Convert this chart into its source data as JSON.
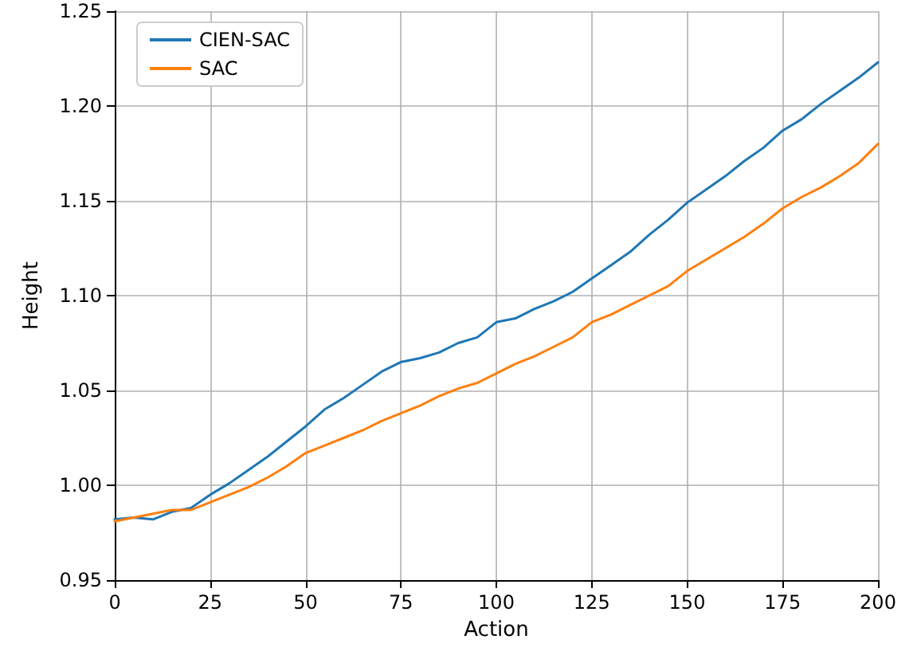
{
  "chart_data": {
    "type": "line",
    "xlabel": "Action",
    "ylabel": "Height",
    "x": [
      0,
      5,
      10,
      15,
      20,
      25,
      30,
      35,
      40,
      45,
      50,
      55,
      60,
      65,
      70,
      75,
      80,
      85,
      90,
      95,
      100,
      105,
      110,
      115,
      120,
      125,
      130,
      135,
      140,
      145,
      150,
      155,
      160,
      165,
      170,
      175,
      180,
      185,
      190,
      195,
      200
    ],
    "series": [
      {
        "name": "CIEN-SAC",
        "color": "#1f77b4",
        "values": [
          0.982,
          0.983,
          0.982,
          0.986,
          0.988,
          0.995,
          1.001,
          1.008,
          1.015,
          1.023,
          1.031,
          1.04,
          1.046,
          1.053,
          1.06,
          1.065,
          1.067,
          1.07,
          1.075,
          1.078,
          1.086,
          1.088,
          1.093,
          1.097,
          1.102,
          1.109,
          1.116,
          1.123,
          1.132,
          1.14,
          1.149,
          1.156,
          1.163,
          1.171,
          1.178,
          1.187,
          1.193,
          1.201,
          1.208,
          1.215,
          1.223
        ]
      },
      {
        "name": "SAC",
        "color": "#ff7f0e",
        "values": [
          0.981,
          0.983,
          0.985,
          0.987,
          0.987,
          0.991,
          0.995,
          0.999,
          1.004,
          1.01,
          1.017,
          1.021,
          1.025,
          1.029,
          1.034,
          1.038,
          1.042,
          1.047,
          1.051,
          1.054,
          1.059,
          1.064,
          1.068,
          1.073,
          1.078,
          1.086,
          1.09,
          1.095,
          1.1,
          1.105,
          1.113,
          1.119,
          1.125,
          1.131,
          1.138,
          1.146,
          1.152,
          1.157,
          1.163,
          1.17,
          1.18
        ]
      }
    ],
    "xlim": [
      0,
      200
    ],
    "xticks": [
      0,
      25,
      50,
      75,
      100,
      125,
      150,
      175,
      200
    ],
    "ylim": [
      0.95,
      1.25
    ],
    "yticks": [
      {
        "value": 0.95,
        "label": "0.95"
      },
      {
        "value": 1.0,
        "label": "1.00"
      },
      {
        "value": 1.05,
        "label": "1.05"
      },
      {
        "value": 1.1,
        "label": "1.10"
      },
      {
        "value": 1.15,
        "label": "1.15"
      },
      {
        "value": 1.2,
        "label": "1.20"
      },
      {
        "value": 1.25,
        "label": "1.25"
      }
    ],
    "grid": true,
    "legend": "top left",
    "marker": "none",
    "line_style": "solid"
  }
}
